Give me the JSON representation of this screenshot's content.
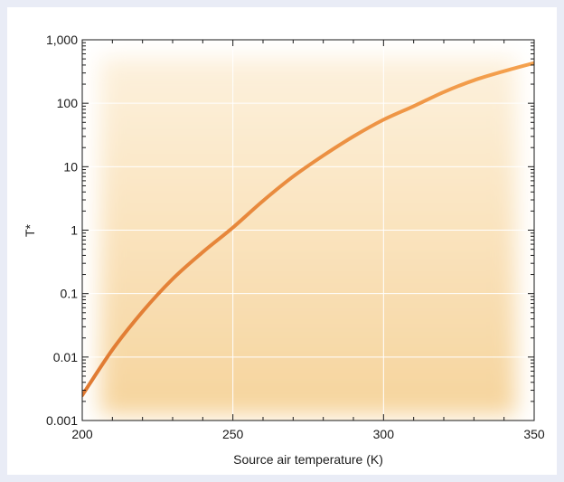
{
  "chart_data": {
    "type": "line",
    "title": "",
    "xlabel": "Source air temperature (K)",
    "ylabel": "T*",
    "xlim": [
      200,
      350
    ],
    "ylim": [
      0.001,
      1000
    ],
    "yscale": "log",
    "grid": true,
    "legend": "none",
    "x_ticks": [
      {
        "value": 200,
        "label": "200"
      },
      {
        "value": 250,
        "label": "250"
      },
      {
        "value": 300,
        "label": "300"
      },
      {
        "value": 350,
        "label": "350"
      }
    ],
    "y_ticks": [
      {
        "value": 0.001,
        "label": "0.001"
      },
      {
        "value": 0.01,
        "label": "0.01"
      },
      {
        "value": 0.1,
        "label": "0.1"
      },
      {
        "value": 1,
        "label": "1"
      },
      {
        "value": 10,
        "label": "10"
      },
      {
        "value": 100,
        "label": "100"
      },
      {
        "value": 1000,
        "label": "1,000"
      }
    ],
    "series": [
      {
        "color": "#e8833a",
        "color_end": "#f4a050",
        "x": [
          200,
          210,
          220,
          230,
          240,
          250,
          260,
          270,
          280,
          290,
          300,
          310,
          320,
          330,
          340,
          350
        ],
        "y": [
          0.0025,
          0.013,
          0.052,
          0.17,
          0.45,
          1.1,
          2.9,
          7,
          15,
          30,
          55,
          90,
          150,
          230,
          320,
          430
        ]
      }
    ],
    "background_colors": {
      "outer": "#e9ecf6",
      "panel": "#ffffff",
      "plot_fill": "#f8dba8"
    }
  }
}
